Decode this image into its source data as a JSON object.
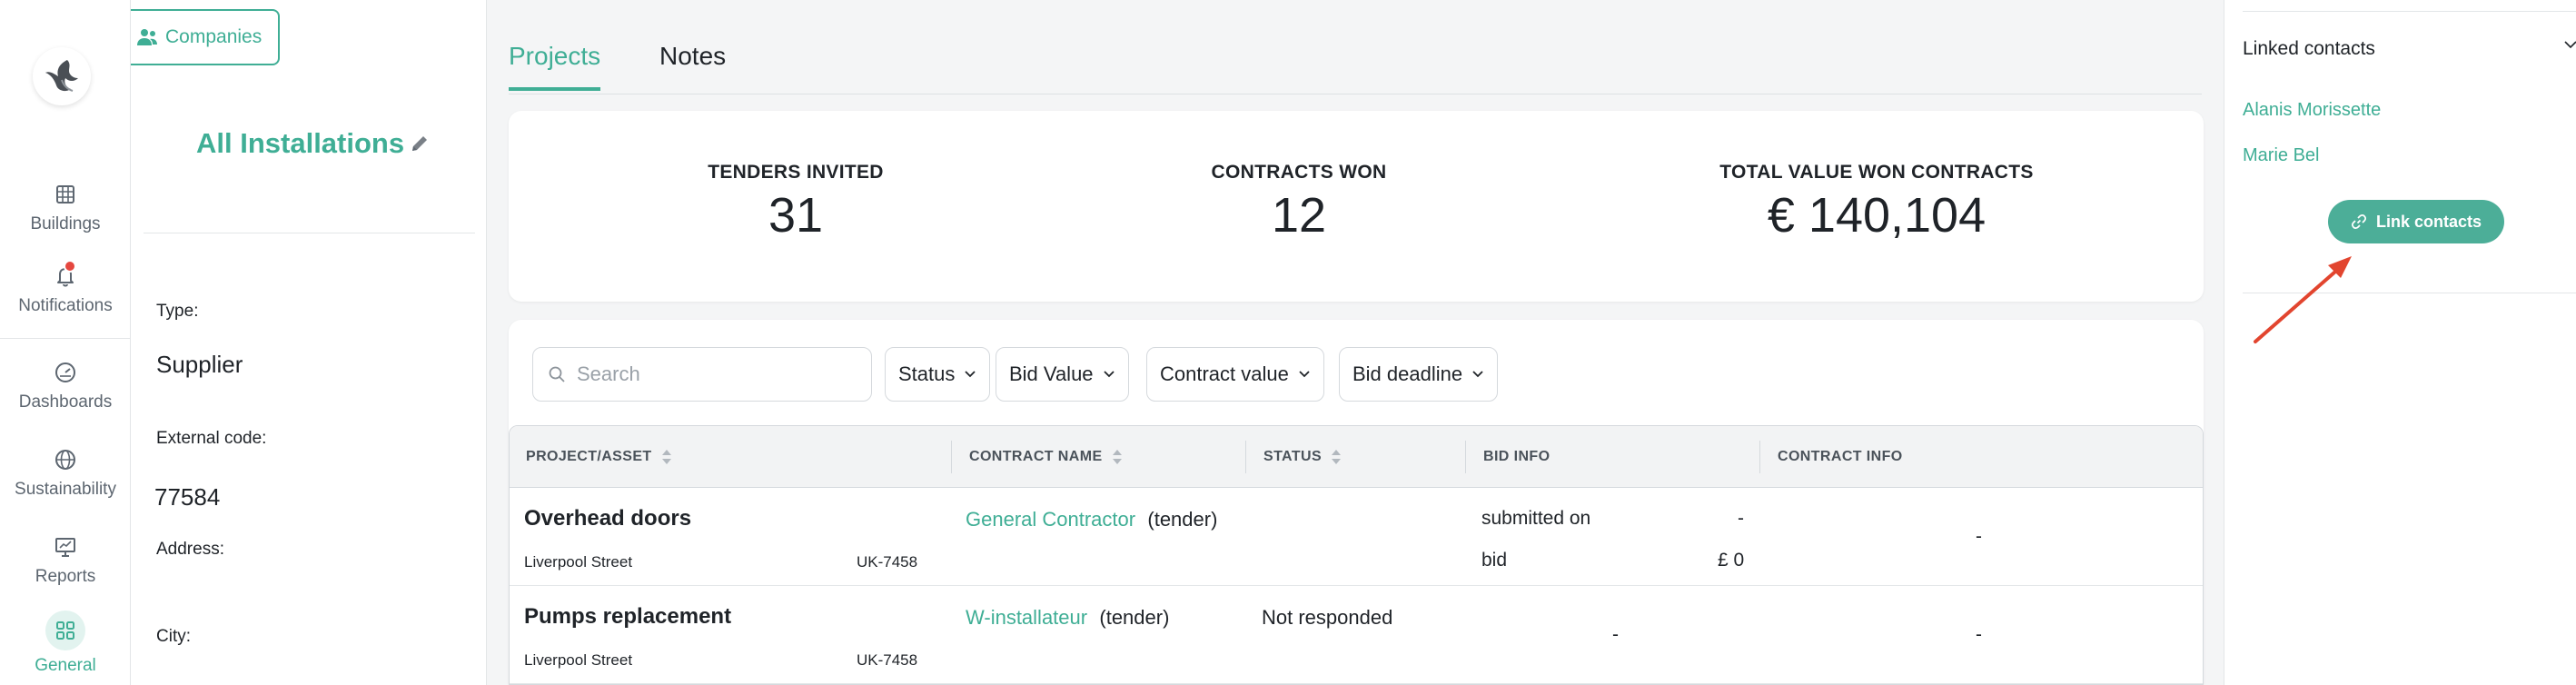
{
  "nav": {
    "items": [
      {
        "label": "Buildings",
        "icon": "building-grid-icon"
      },
      {
        "label": "Notifications",
        "icon": "bell-icon"
      },
      {
        "label": "Dashboards",
        "icon": "gauge-icon"
      },
      {
        "label": "Sustainability",
        "icon": "globe-icon"
      },
      {
        "label": "Reports",
        "icon": "presentation-chart-icon"
      },
      {
        "label": "General",
        "icon": "grid-four-icon",
        "active": true
      }
    ]
  },
  "info": {
    "companies_button": "Companies",
    "company_title": "All Installations",
    "type_label": "Type:",
    "type_value": "Supplier",
    "external_code_label": "External code:",
    "external_code_value": "77584",
    "address_label": "Address:",
    "city_label": "City:"
  },
  "tabs": [
    {
      "label": "Projects",
      "active": true
    },
    {
      "label": "Notes",
      "active": false
    }
  ],
  "stats": [
    {
      "label": "TENDERS INVITED",
      "value": "31"
    },
    {
      "label": "CONTRACTS WON",
      "value": "12"
    },
    {
      "label": "TOTAL VALUE WON CONTRACTS",
      "value": "€ 140,104"
    }
  ],
  "search": {
    "placeholder": "Search"
  },
  "filters": [
    "Status",
    "Bid Value",
    "Contract value",
    "Bid deadline"
  ],
  "table": {
    "columns": [
      "PROJECT/ASSET",
      "CONTRACT NAME",
      "STATUS",
      "BID INFO",
      "CONTRACT INFO"
    ],
    "rows": [
      {
        "project": "Overhead doors",
        "asset": "Liverpool Street",
        "asset_code": "UK-7458",
        "contract_name": "General Contractor",
        "contract_kind": "(tender)",
        "status": "",
        "bid_line1_label": "submitted on",
        "bid_line1_value": "-",
        "bid_line2_label": "bid",
        "bid_line2_value": "£ 0",
        "contract_info": "-"
      },
      {
        "project": "Pumps replacement",
        "asset": "Liverpool Street",
        "asset_code": "UK-7458",
        "contract_name": "W-installateur",
        "contract_kind": "(tender)",
        "status": "Not responded",
        "bid_info": "-",
        "contract_info": "-"
      }
    ]
  },
  "linked_contacts": {
    "title": "Linked contacts",
    "contacts": [
      "Alanis Morissette",
      "Marie Bel"
    ],
    "link_button": "Link contacts"
  },
  "colors": {
    "accent": "#3fae95",
    "button": "#4cae98",
    "annotation_arrow": "#e2452f",
    "notification_dot": "#e5473f"
  }
}
